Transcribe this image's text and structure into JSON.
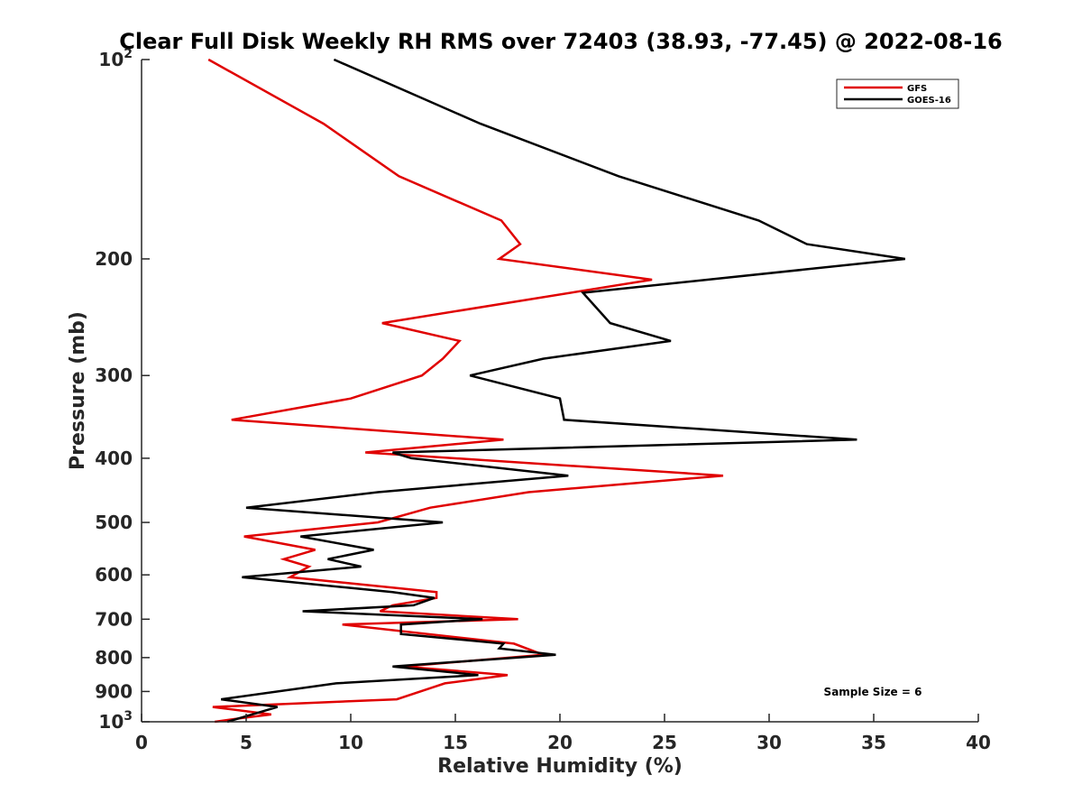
{
  "chart_data": {
    "type": "line",
    "title": "Clear Full Disk Weekly RH RMS over 72403 (38.93, -77.45) @ 2022-08-16",
    "xlabel": "Relative Humidity (%)",
    "ylabel": "Pressure (mb)",
    "xlim": [
      0,
      40
    ],
    "ylim": [
      100,
      1000
    ],
    "y_scale": "log",
    "y_reversed": true,
    "x_ticks": [
      "0",
      "5",
      "10",
      "15",
      "20",
      "25",
      "30",
      "35",
      "40"
    ],
    "y_ticks": [
      {
        "value": 100,
        "base": "10",
        "exp": "2"
      },
      {
        "value": 200,
        "label": "200"
      },
      {
        "value": 300,
        "label": "300"
      },
      {
        "value": 400,
        "label": "400"
      },
      {
        "value": 500,
        "label": "500"
      },
      {
        "value": 600,
        "label": "600"
      },
      {
        "value": 700,
        "label": "700"
      },
      {
        "value": 800,
        "label": "800"
      },
      {
        "value": 900,
        "label": "900"
      },
      {
        "value": 1000,
        "base": "10",
        "exp": "3"
      }
    ],
    "legend_position": "top-right",
    "annotation": "Sample Size = 6",
    "series": [
      {
        "name": "GFS",
        "color": "#e00000",
        "points": [
          [
            3.2,
            100
          ],
          [
            8.7,
            125
          ],
          [
            12.3,
            150
          ],
          [
            17.2,
            175
          ],
          [
            18.1,
            190
          ],
          [
            17.1,
            200
          ],
          [
            24.4,
            215
          ],
          [
            11.5,
            250
          ],
          [
            15.2,
            266
          ],
          [
            14.4,
            283
          ],
          [
            13.4,
            300
          ],
          [
            10.0,
            325
          ],
          [
            4.3,
            350
          ],
          [
            17.3,
            375
          ],
          [
            10.7,
            392
          ],
          [
            27.8,
            425
          ],
          [
            18.5,
            450
          ],
          [
            13.8,
            475
          ],
          [
            11.3,
            500
          ],
          [
            4.9,
            525
          ],
          [
            8.3,
            550
          ],
          [
            6.8,
            568
          ],
          [
            8.0,
            583
          ],
          [
            7.1,
            605
          ],
          [
            14.1,
            637
          ],
          [
            14.1,
            650
          ],
          [
            12.0,
            667
          ],
          [
            11.4,
            681
          ],
          [
            18.0,
            700
          ],
          [
            9.6,
            713
          ],
          [
            17.8,
            762
          ],
          [
            19.2,
            792
          ],
          [
            12.5,
            825
          ],
          [
            17.5,
            850
          ],
          [
            14.5,
            875
          ],
          [
            12.2,
            925
          ],
          [
            3.4,
            950
          ],
          [
            6.2,
            975
          ],
          [
            5.0,
            985
          ],
          [
            3.5,
            1000
          ]
        ]
      },
      {
        "name": "GOES-16",
        "color": "#000000",
        "points": [
          [
            9.2,
            100
          ],
          [
            16.2,
            125
          ],
          [
            22.8,
            150
          ],
          [
            29.5,
            175
          ],
          [
            31.8,
            190
          ],
          [
            36.5,
            200
          ],
          [
            21.1,
            225
          ],
          [
            22.4,
            250
          ],
          [
            25.3,
            266
          ],
          [
            19.2,
            283
          ],
          [
            15.7,
            300
          ],
          [
            20.0,
            325
          ],
          [
            20.2,
            350
          ],
          [
            34.2,
            375
          ],
          [
            12.0,
            392
          ],
          [
            12.9,
            400
          ],
          [
            20.4,
            425
          ],
          [
            11.3,
            450
          ],
          [
            5.0,
            475
          ],
          [
            14.4,
            500
          ],
          [
            7.6,
            525
          ],
          [
            11.1,
            550
          ],
          [
            8.9,
            568
          ],
          [
            10.5,
            583
          ],
          [
            4.8,
            605
          ],
          [
            12.0,
            637
          ],
          [
            14.0,
            650
          ],
          [
            13.0,
            667
          ],
          [
            7.7,
            681
          ],
          [
            16.3,
            700
          ],
          [
            12.4,
            713
          ],
          [
            12.4,
            737
          ],
          [
            17.3,
            762
          ],
          [
            17.1,
            775
          ],
          [
            19.8,
            792
          ],
          [
            12.0,
            825
          ],
          [
            16.1,
            850
          ],
          [
            9.3,
            875
          ],
          [
            3.8,
            925
          ],
          [
            6.5,
            950
          ],
          [
            4.1,
            1000
          ]
        ]
      }
    ]
  }
}
